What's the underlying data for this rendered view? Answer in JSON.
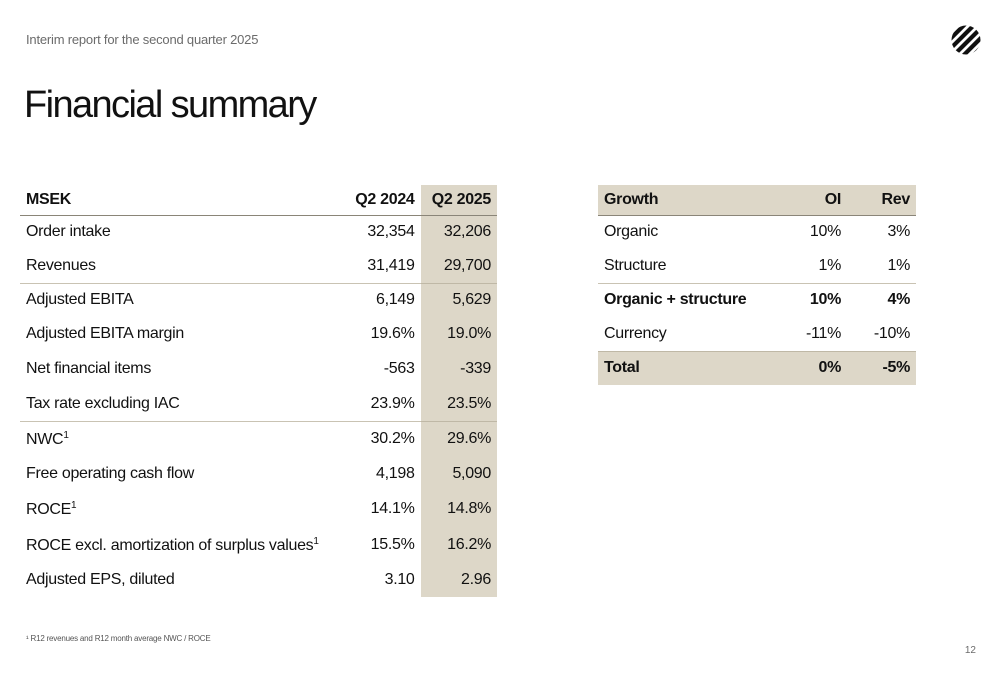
{
  "header": {
    "subtitle": "Interim report for the second quarter 2025",
    "title": "Financial summary",
    "logo_icon": "striped-circle-logo-icon"
  },
  "left_table": {
    "headers": [
      "MSEK",
      "Q2 2024",
      "Q2 2025"
    ],
    "rows": [
      {
        "label": "Order intake",
        "q2_2024": "32,354",
        "q2_2025": "32,206"
      },
      {
        "label": "Revenues",
        "q2_2024": "31,419",
        "q2_2025": "29,700"
      },
      {
        "label": "Adjusted EBITA",
        "q2_2024": "6,149",
        "q2_2025": "5,629"
      },
      {
        "label": "Adjusted EBITA margin",
        "q2_2024": "19.6%",
        "q2_2025": "19.0%"
      },
      {
        "label": "Net financial items",
        "q2_2024": "-563",
        "q2_2025": "-339"
      },
      {
        "label": "Tax rate excluding IAC",
        "q2_2024": "23.9%",
        "q2_2025": "23.5%"
      },
      {
        "label": "NWC",
        "sup": "1",
        "q2_2024": "30.2%",
        "q2_2025": "29.6%"
      },
      {
        "label": "Free operating cash flow",
        "q2_2024": "4,198",
        "q2_2025": "5,090"
      },
      {
        "label": "ROCE",
        "sup": "1",
        "q2_2024": "14.1%",
        "q2_2025": "14.8%"
      },
      {
        "label": "ROCE excl. amortization of surplus values",
        "sup": "1",
        "q2_2024": "15.5%",
        "q2_2025": "16.2%"
      },
      {
        "label": "Adjusted EPS, diluted",
        "q2_2024": "3.10",
        "q2_2025": "2.96"
      }
    ]
  },
  "right_table": {
    "headers": [
      "Growth",
      "OI",
      "Rev"
    ],
    "rows": [
      {
        "label": "Organic",
        "oi": "10%",
        "rev": "3%"
      },
      {
        "label": "Structure",
        "oi": "1%",
        "rev": "1%"
      },
      {
        "label": "Organic + structure",
        "oi": "10%",
        "rev": "4%"
      },
      {
        "label": "Currency",
        "oi": "-11%",
        "rev": "-10%"
      },
      {
        "label": "Total",
        "oi": "0%",
        "rev": "-5%"
      }
    ]
  },
  "footnote": "¹ R12 revenues and R12 month average NWC / ROCE",
  "page_number": "12",
  "colors": {
    "highlight": "#ddd7c8",
    "header_rule": "#8a8578",
    "text": "#111111",
    "muted": "#6b6b6b"
  }
}
